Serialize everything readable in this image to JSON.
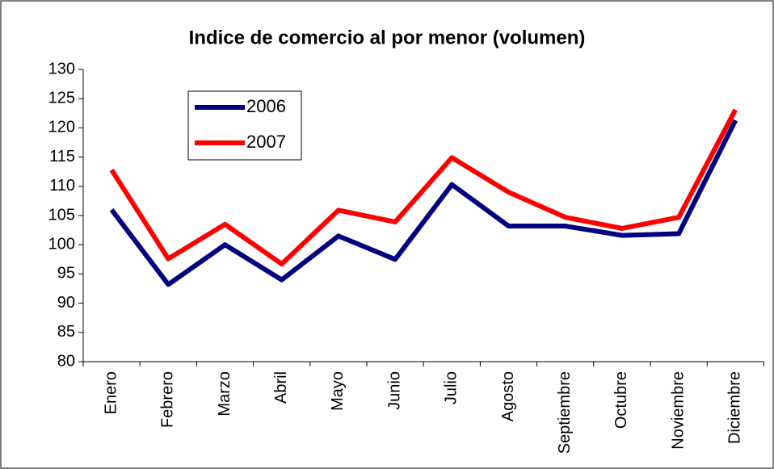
{
  "chart_data": {
    "type": "line",
    "title": "Indice de comercio al por menor (volumen)",
    "categories": [
      "Enero",
      "Febrero",
      "Marzo",
      "Abril",
      "Mayo",
      "Junio",
      "Julio",
      "Agosto",
      "Septiembre",
      "Octubre",
      "Noviembre",
      "Diciembre"
    ],
    "series": [
      {
        "name": "2006",
        "color": "#000080",
        "values": [
          106,
          93.2,
          100,
          94,
          101.5,
          97.5,
          110.3,
          103.2,
          103.2,
          101.6,
          101.9,
          121.3
        ]
      },
      {
        "name": "2007",
        "color": "#ff0000",
        "values": [
          112.8,
          97.6,
          103.5,
          96.7,
          105.9,
          103.9,
          114.9,
          109,
          104.7,
          102.8,
          104.7,
          123.1
        ]
      }
    ],
    "ylim": [
      80,
      130
    ],
    "yticks": [
      80,
      85,
      90,
      95,
      100,
      105,
      110,
      115,
      120,
      125,
      130
    ],
    "legend": "upper left"
  }
}
